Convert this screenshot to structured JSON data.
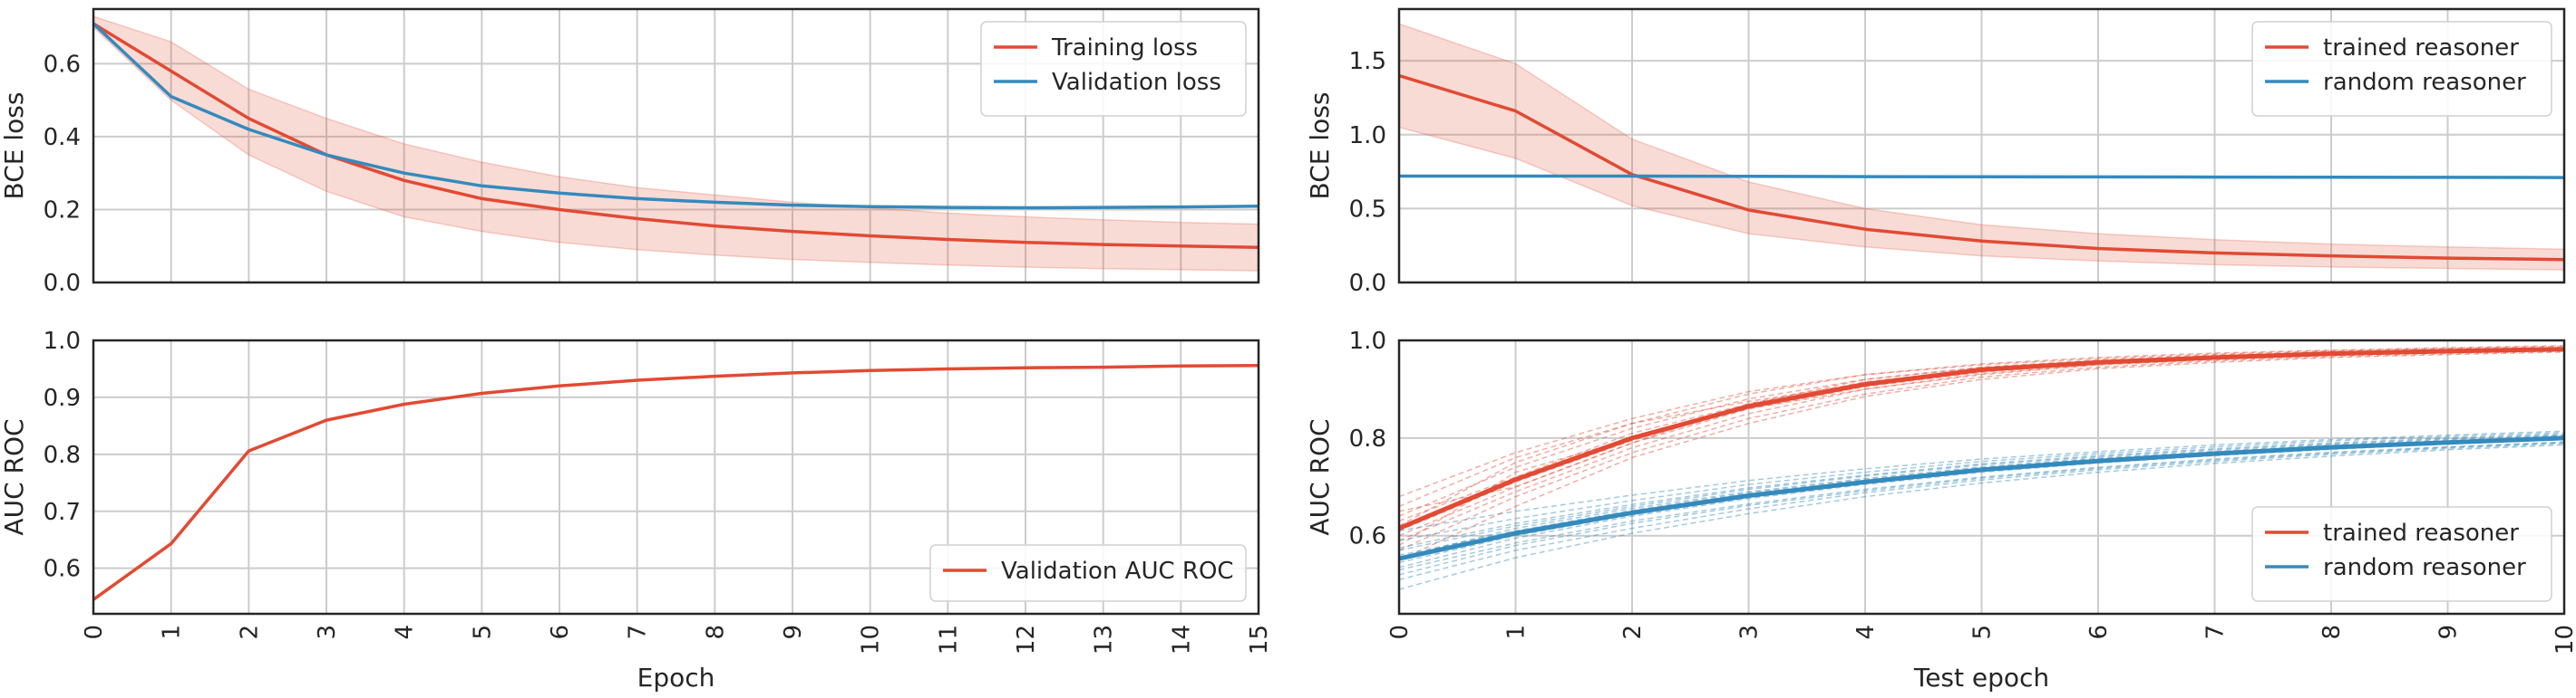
{
  "chart_data": [
    {
      "type": "line",
      "ylabel": "BCE loss",
      "xlabel": "",
      "xlim": [
        0,
        15
      ],
      "ylim": [
        0,
        0.75
      ],
      "xticks": [
        0,
        1,
        2,
        3,
        4,
        5,
        6,
        7,
        8,
        9,
        10,
        11,
        12,
        13,
        14,
        15
      ],
      "xtick_labels_visible": false,
      "yticks": [
        "0.0",
        "0.2",
        "0.4",
        "0.6"
      ],
      "yticks_values": [
        0.0,
        0.2,
        0.4,
        0.6
      ],
      "grid": true,
      "legend": "top-right",
      "x": [
        0,
        1,
        2,
        3,
        4,
        5,
        6,
        7,
        8,
        9,
        10,
        11,
        12,
        13,
        14,
        15
      ],
      "series": [
        {
          "name": "Training loss",
          "color": "#e24a33",
          "values": [
            0.71,
            0.58,
            0.45,
            0.35,
            0.28,
            0.23,
            0.2,
            0.175,
            0.155,
            0.14,
            0.128,
            0.118,
            0.11,
            0.104,
            0.1,
            0.096
          ],
          "band_lower": [
            0.7,
            0.5,
            0.35,
            0.25,
            0.18,
            0.14,
            0.11,
            0.09,
            0.075,
            0.063,
            0.055,
            0.048,
            0.042,
            0.038,
            0.035,
            0.032
          ],
          "band_upper": [
            0.73,
            0.66,
            0.53,
            0.45,
            0.38,
            0.33,
            0.29,
            0.26,
            0.24,
            0.22,
            0.205,
            0.19,
            0.18,
            0.172,
            0.165,
            0.16
          ]
        },
        {
          "name": "Validation loss",
          "color": "#348abd",
          "values": [
            0.71,
            0.51,
            0.42,
            0.35,
            0.3,
            0.265,
            0.245,
            0.23,
            0.22,
            0.212,
            0.208,
            0.206,
            0.205,
            0.206,
            0.207,
            0.209
          ]
        }
      ]
    },
    {
      "type": "line",
      "ylabel": "BCE loss",
      "xlabel": "",
      "xlim": [
        0,
        10
      ],
      "ylim": [
        0,
        1.85
      ],
      "xticks": [
        0,
        1,
        2,
        3,
        4,
        5,
        6,
        7,
        8,
        9,
        10
      ],
      "xtick_labels_visible": false,
      "yticks": [
        "0.0",
        "0.5",
        "1.0",
        "1.5"
      ],
      "yticks_values": [
        0.0,
        0.5,
        1.0,
        1.5
      ],
      "grid": true,
      "legend": "top-right",
      "x": [
        0,
        1,
        2,
        3,
        4,
        5,
        6,
        7,
        8,
        9,
        10
      ],
      "series": [
        {
          "name": "trained reasoner",
          "color": "#e24a33",
          "values": [
            1.4,
            1.16,
            0.73,
            0.49,
            0.36,
            0.28,
            0.23,
            0.2,
            0.18,
            0.165,
            0.155
          ],
          "band_lower": [
            1.05,
            0.84,
            0.52,
            0.33,
            0.24,
            0.18,
            0.145,
            0.12,
            0.105,
            0.095,
            0.085
          ],
          "band_upper": [
            1.75,
            1.48,
            0.97,
            0.68,
            0.5,
            0.39,
            0.33,
            0.29,
            0.26,
            0.24,
            0.225
          ]
        },
        {
          "name": "random reasoner",
          "color": "#348abd",
          "values": [
            0.72,
            0.72,
            0.72,
            0.718,
            0.716,
            0.715,
            0.714,
            0.713,
            0.712,
            0.711,
            0.71
          ]
        }
      ]
    },
    {
      "type": "line",
      "ylabel": "AUC ROC",
      "xlabel": "Epoch",
      "xlim": [
        0,
        15
      ],
      "ylim": [
        0.52,
        1.0
      ],
      "xticks": [
        "0",
        "1",
        "2",
        "3",
        "4",
        "5",
        "6",
        "7",
        "8",
        "9",
        "10",
        "11",
        "12",
        "13",
        "14",
        "15"
      ],
      "xticks_values": [
        0,
        1,
        2,
        3,
        4,
        5,
        6,
        7,
        8,
        9,
        10,
        11,
        12,
        13,
        14,
        15
      ],
      "yticks": [
        "0.6",
        "0.7",
        "0.8",
        "0.9",
        "1.0"
      ],
      "yticks_values": [
        0.6,
        0.7,
        0.8,
        0.9,
        1.0
      ],
      "grid": true,
      "legend": "bottom-right",
      "x": [
        0,
        1,
        2,
        3,
        4,
        5,
        6,
        7,
        8,
        9,
        10,
        11,
        12,
        13,
        14,
        15
      ],
      "series": [
        {
          "name": "Validation AUC ROC",
          "color": "#e24a33",
          "values": [
            0.545,
            0.643,
            0.806,
            0.86,
            0.888,
            0.907,
            0.92,
            0.93,
            0.937,
            0.943,
            0.947,
            0.95,
            0.952,
            0.953,
            0.955,
            0.956
          ]
        }
      ]
    },
    {
      "type": "line",
      "ylabel": "AUC ROC",
      "xlabel": "Test epoch",
      "xlim": [
        0,
        10
      ],
      "ylim": [
        0.44,
        1.0
      ],
      "xticks": [
        "0",
        "1",
        "2",
        "3",
        "4",
        "5",
        "6",
        "7",
        "8",
        "9",
        "10"
      ],
      "xticks_values": [
        0,
        1,
        2,
        3,
        4,
        5,
        6,
        7,
        8,
        9,
        10
      ],
      "yticks": [
        "0.6",
        "0.8",
        "1.0"
      ],
      "yticks_values": [
        0.6,
        0.8,
        1.0
      ],
      "grid": true,
      "legend": "bottom-right",
      "x": [
        0,
        1,
        2,
        3,
        4,
        5,
        6,
        7,
        8,
        9,
        10
      ],
      "series": [
        {
          "name": "trained reasoner",
          "color": "#e24a33",
          "values": [
            0.615,
            0.715,
            0.8,
            0.865,
            0.91,
            0.94,
            0.955,
            0.965,
            0.973,
            0.978,
            0.982
          ],
          "runs": [
            [
              0.59,
              0.69,
              0.78,
              0.85,
              0.9,
              0.93,
              0.95,
              0.96,
              0.97,
              0.975,
              0.98
            ],
            [
              0.64,
              0.74,
              0.82,
              0.88,
              0.92,
              0.945,
              0.96,
              0.97,
              0.977,
              0.982,
              0.985
            ],
            [
              0.57,
              0.68,
              0.77,
              0.84,
              0.89,
              0.925,
              0.945,
              0.958,
              0.967,
              0.973,
              0.978
            ],
            [
              0.66,
              0.76,
              0.83,
              0.89,
              0.93,
              0.95,
              0.963,
              0.972,
              0.979,
              0.984,
              0.988
            ],
            [
              0.6,
              0.7,
              0.79,
              0.86,
              0.905,
              0.935,
              0.952,
              0.963,
              0.971,
              0.977,
              0.981
            ],
            [
              0.63,
              0.72,
              0.81,
              0.87,
              0.915,
              0.942,
              0.957,
              0.967,
              0.974,
              0.979,
              0.983
            ],
            [
              0.55,
              0.66,
              0.76,
              0.83,
              0.885,
              0.92,
              0.942,
              0.955,
              0.965,
              0.971,
              0.976
            ],
            [
              0.68,
              0.77,
              0.84,
              0.895,
              0.93,
              0.952,
              0.965,
              0.974,
              0.98,
              0.985,
              0.989
            ],
            [
              0.61,
              0.71,
              0.795,
              0.862,
              0.908,
              0.938,
              0.954,
              0.964,
              0.972,
              0.977,
              0.981
            ],
            [
              0.58,
              0.73,
              0.8,
              0.86,
              0.9,
              0.932,
              0.95,
              0.962,
              0.97,
              0.976,
              0.98
            ],
            [
              0.65,
              0.7,
              0.79,
              0.87,
              0.92,
              0.945,
              0.958,
              0.968,
              0.976,
              0.981,
              0.985
            ],
            [
              0.62,
              0.75,
              0.83,
              0.875,
              0.912,
              0.94,
              0.956,
              0.966,
              0.973,
              0.978,
              0.982
            ]
          ]
        },
        {
          "name": "random reasoner",
          "color": "#348abd",
          "values": [
            0.553,
            0.605,
            0.647,
            0.682,
            0.71,
            0.735,
            0.753,
            0.768,
            0.781,
            0.791,
            0.8
          ],
          "runs": [
            [
              0.53,
              0.585,
              0.63,
              0.665,
              0.695,
              0.72,
              0.74,
              0.757,
              0.771,
              0.782,
              0.792
            ],
            [
              0.57,
              0.62,
              0.66,
              0.695,
              0.722,
              0.745,
              0.762,
              0.776,
              0.788,
              0.798,
              0.806
            ],
            [
              0.51,
              0.57,
              0.615,
              0.655,
              0.688,
              0.714,
              0.735,
              0.752,
              0.767,
              0.779,
              0.789
            ],
            [
              0.59,
              0.635,
              0.672,
              0.705,
              0.73,
              0.752,
              0.768,
              0.782,
              0.794,
              0.803,
              0.811
            ],
            [
              0.545,
              0.6,
              0.643,
              0.679,
              0.707,
              0.732,
              0.751,
              0.766,
              0.779,
              0.789,
              0.798
            ],
            [
              0.56,
              0.61,
              0.652,
              0.688,
              0.715,
              0.739,
              0.757,
              0.771,
              0.784,
              0.794,
              0.803
            ],
            [
              0.49,
              0.555,
              0.605,
              0.645,
              0.68,
              0.708,
              0.73,
              0.748,
              0.763,
              0.776,
              0.786
            ],
            [
              0.61,
              0.65,
              0.683,
              0.713,
              0.737,
              0.757,
              0.772,
              0.786,
              0.797,
              0.806,
              0.814
            ],
            [
              0.535,
              0.595,
              0.64,
              0.676,
              0.705,
              0.73,
              0.749,
              0.764,
              0.777,
              0.788,
              0.797
            ],
            [
              0.575,
              0.625,
              0.664,
              0.698,
              0.724,
              0.747,
              0.764,
              0.778,
              0.79,
              0.8,
              0.808
            ],
            [
              0.52,
              0.58,
              0.625,
              0.662,
              0.692,
              0.718,
              0.738,
              0.755,
              0.769,
              0.781,
              0.791
            ],
            [
              0.555,
              0.615,
              0.656,
              0.69,
              0.717,
              0.741,
              0.759,
              0.773,
              0.786,
              0.796,
              0.805
            ]
          ]
        }
      ]
    }
  ]
}
